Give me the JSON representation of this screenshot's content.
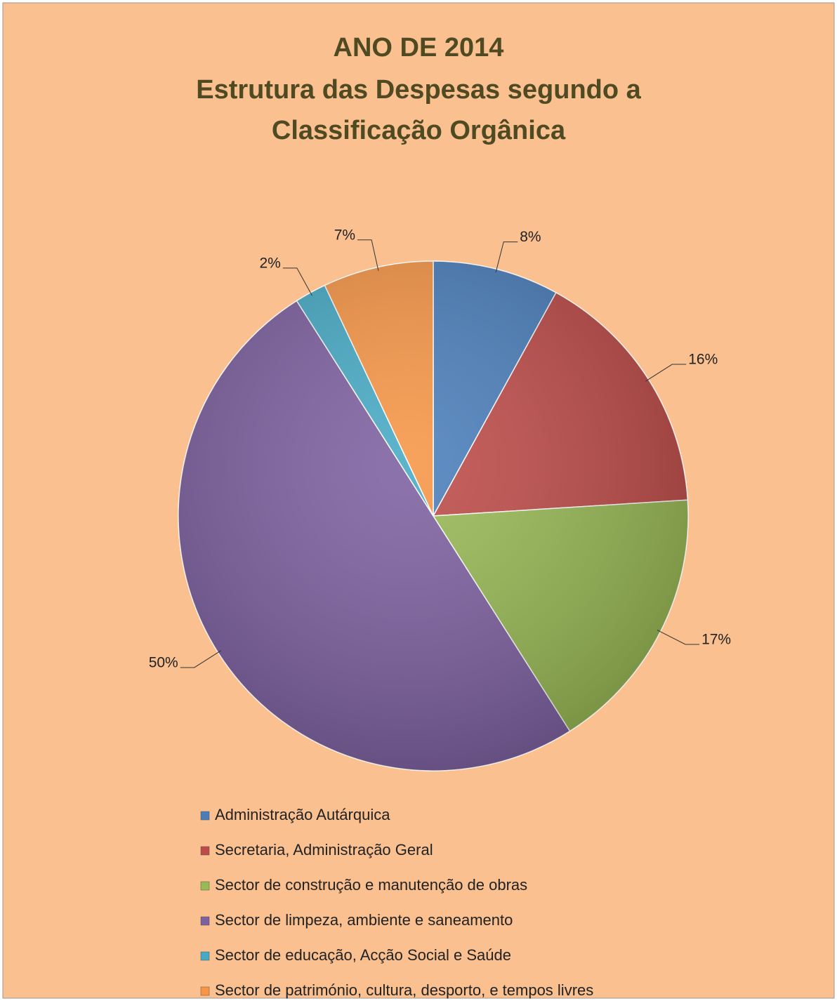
{
  "chart_data": {
    "type": "pie",
    "title": [
      "ANO DE 2014",
      "Estrutura das Despesas segundo a",
      "Classificação Orgânica"
    ],
    "categories": [
      "Administração Autárquica",
      "Secretaria, Administração Geral",
      "Sector de construção e manutenção de obras",
      "Sector de limpeza, ambiente e saneamento",
      "Sector de educação, Acção Social e Saúde",
      "Sector de património, cultura, desporto, e tempos livres"
    ],
    "values": [
      8,
      16,
      17,
      50,
      2,
      7
    ],
    "value_labels": [
      "8%",
      "16%",
      "17%",
      "50%",
      "2%",
      "7%"
    ],
    "colors": [
      "#4a7ebb",
      "#be4b48",
      "#98b954",
      "#7d60a0",
      "#46aac5",
      "#f79646"
    ],
    "legend": "bottom"
  }
}
